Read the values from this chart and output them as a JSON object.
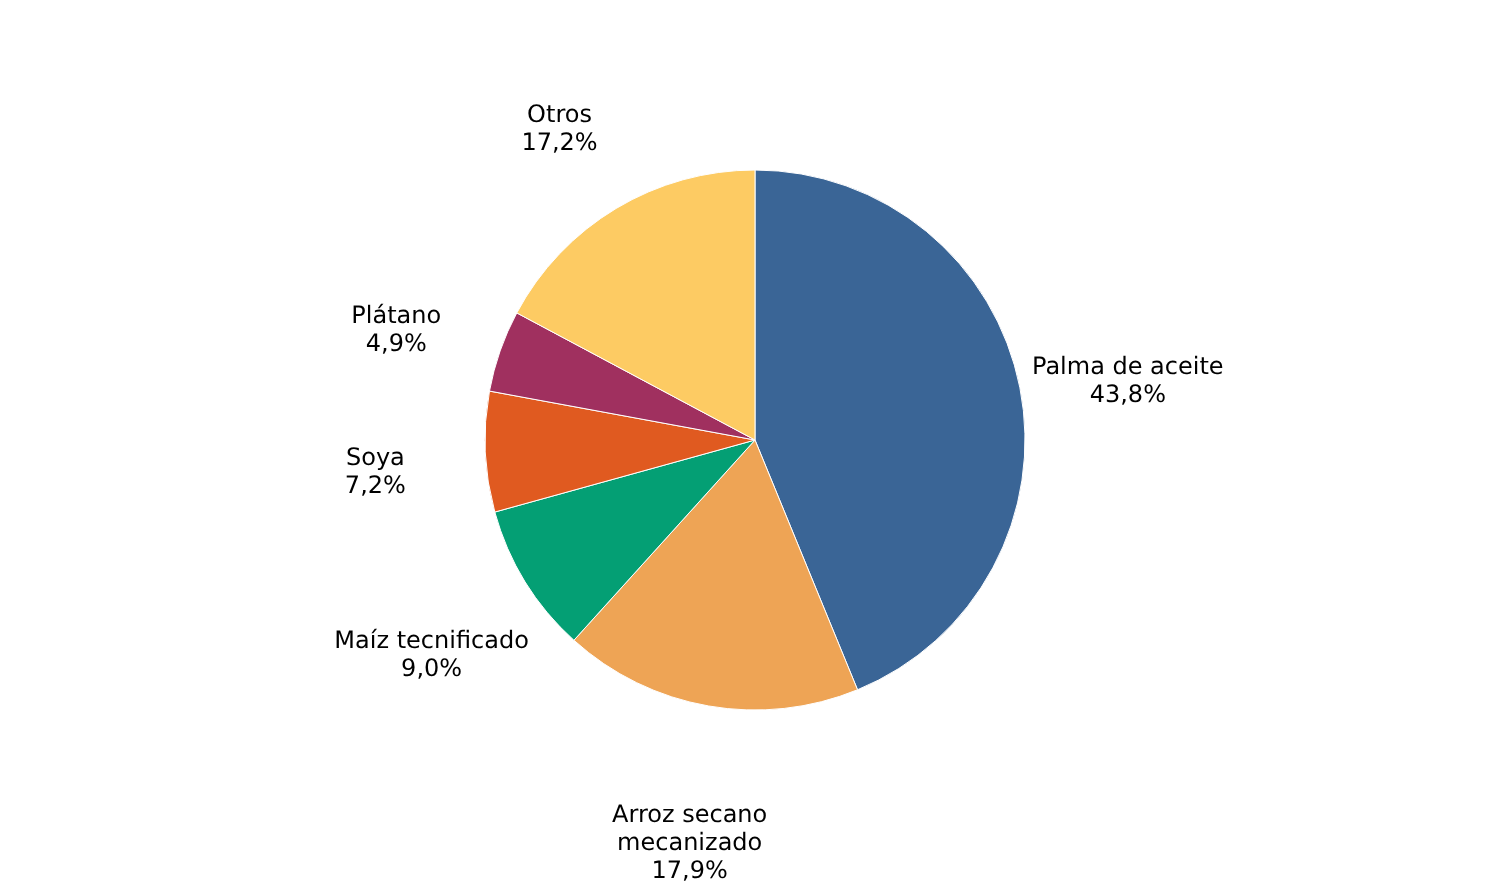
{
  "chart_data": {
    "type": "pie",
    "categories": [
      "Palma de aceite",
      "Arroz secano mecanizado",
      "Maíz tecnificado",
      "Soya",
      "Plátano",
      "Otros"
    ],
    "values": [
      43.8,
      17.9,
      9.0,
      7.2,
      4.9,
      17.2
    ],
    "value_labels": [
      "43,8%",
      "17,9%",
      "9,0%",
      "7,2%",
      "4,9%",
      "17,2%"
    ],
    "colors": [
      "#3a6596",
      "#eea455",
      "#049f74",
      "#e05a20",
      "#a0305f",
      "#fdcb63"
    ],
    "legend": false
  }
}
